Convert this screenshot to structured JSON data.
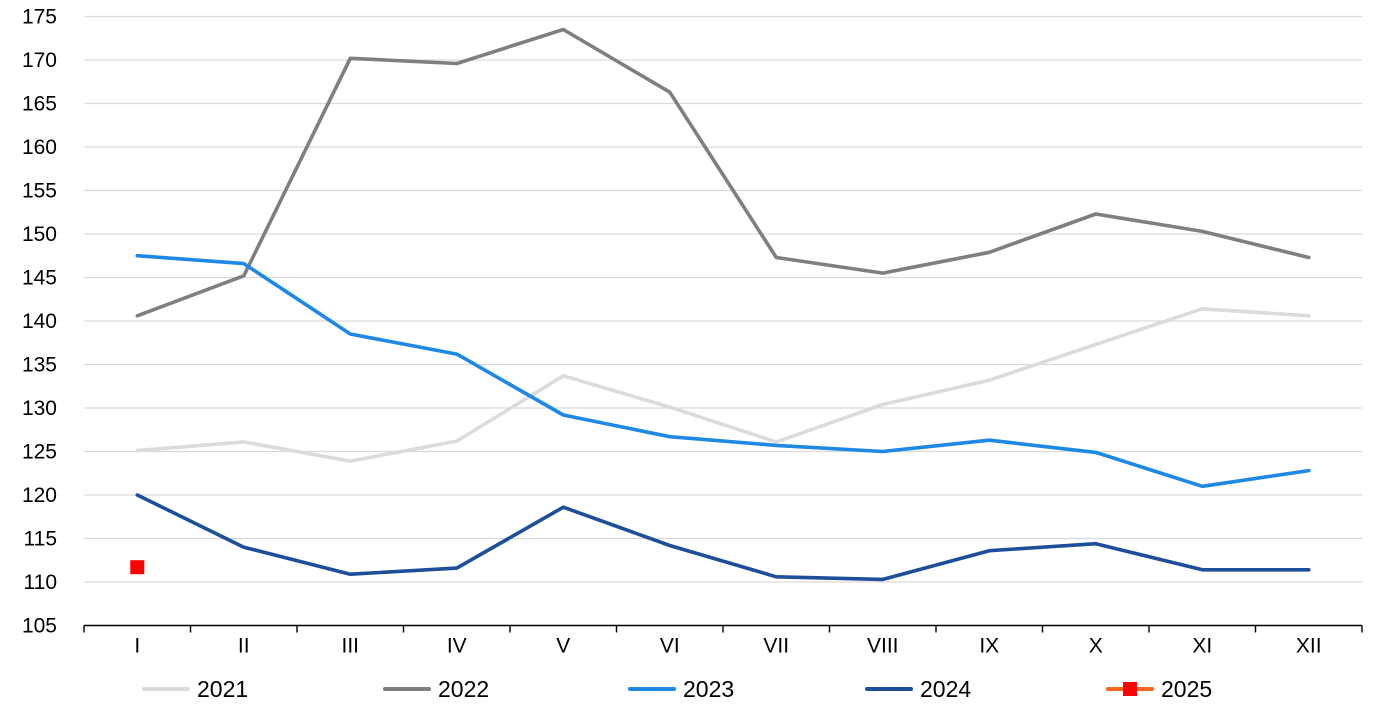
{
  "chart_data": {
    "type": "line",
    "title": "",
    "xlabel": "",
    "ylabel": "",
    "categories": [
      "I",
      "II",
      "III",
      "IV",
      "V",
      "VI",
      "VII",
      "VIII",
      "IX",
      "X",
      "XI",
      "XII"
    ],
    "yticks": [
      105,
      110,
      115,
      120,
      125,
      130,
      135,
      140,
      145,
      150,
      155,
      160,
      165,
      170,
      175
    ],
    "ylim": [
      105,
      175
    ],
    "grid": "horizontal",
    "legend_position": "bottom",
    "series": [
      {
        "name": "2021",
        "color": "#DBDBDB",
        "values": [
          125.1,
          126.1,
          123.9,
          126.2,
          133.7,
          130.1,
          126.1,
          130.4,
          133.2,
          137.3,
          141.4,
          140.6
        ]
      },
      {
        "name": "2022",
        "color": "#7F7F7F",
        "values": [
          140.6,
          145.2,
          170.2,
          169.6,
          173.5,
          166.3,
          147.3,
          145.5,
          147.9,
          152.3,
          150.3,
          147.3
        ]
      },
      {
        "name": "2023",
        "color": "#1E88E5",
        "values": [
          147.5,
          146.6,
          138.5,
          136.2,
          129.2,
          126.7,
          125.7,
          125.0,
          126.3,
          124.9,
          121.0,
          122.8
        ]
      },
      {
        "name": "2024",
        "color": "#1D4E99",
        "values": [
          120.0,
          114.0,
          110.9,
          111.6,
          118.6,
          114.2,
          110.6,
          110.3,
          113.6,
          114.4,
          111.4,
          111.4
        ]
      },
      {
        "name": "2025",
        "color": "#F4661C",
        "marker": "square",
        "marker_color": "#FF0000",
        "values": [
          111.7,
          null,
          null,
          null,
          null,
          null,
          null,
          null,
          null,
          null,
          null,
          null
        ]
      }
    ],
    "colors": {
      "gridline": "#D9D9D9",
      "axis": "#000000",
      "background": "#FFFFFF"
    }
  }
}
